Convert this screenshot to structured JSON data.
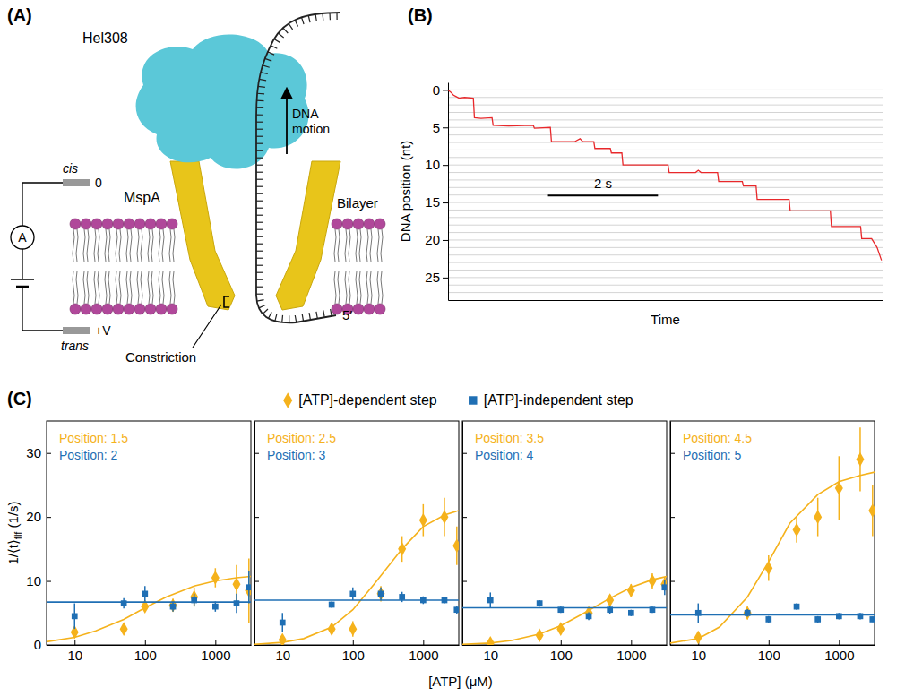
{
  "diagram": {
    "panel": "(A)",
    "labels": {
      "helicase": "Hel308",
      "motion": "DNA motion",
      "pore": "MspA",
      "membrane": "Bilayer",
      "cis": "cis",
      "trans": "trans",
      "cis_potential": "0",
      "trans_potential": "+V",
      "ammeter": "A",
      "constriction": "Constriction",
      "end": "5′"
    }
  },
  "chart_data": [
    {
      "type": "line",
      "panel": "(B)",
      "xlabel": "Time",
      "ylabel": "DNA position (nt)",
      "x": [
        0,
        0.05,
        0.1,
        0.15,
        0.2,
        0.3,
        0.46,
        0.48,
        0.6,
        0.8,
        0.82,
        1.1,
        1.55,
        1.57,
        1.86,
        1.88,
        2.3,
        2.4,
        2.45,
        2.65,
        2.67,
        2.95,
        2.97,
        3.16,
        3.18,
        3.6,
        4.0,
        4.02,
        4.5,
        4.55,
        4.6,
        4.9,
        4.92,
        5.35,
        5.37,
        5.6,
        5.62,
        6.2,
        6.22,
        6.95,
        6.97,
        7.5,
        7.52,
        7.7,
        7.8,
        7.88
      ],
      "series": [
        {
          "color": "#e8282b",
          "values": [
            0,
            0.3,
            0.7,
            0.9,
            1.1,
            1.0,
            1.1,
            3.7,
            3.8,
            3.7,
            4.7,
            4.8,
            4.7,
            5.1,
            5.0,
            6.9,
            6.9,
            6.5,
            6.9,
            6.9,
            7.8,
            7.8,
            8.4,
            8.4,
            10.0,
            10.0,
            10.0,
            11.0,
            11.0,
            10.7,
            11.0,
            11.0,
            12.2,
            12.2,
            12.8,
            12.8,
            14.6,
            14.6,
            16.1,
            16.1,
            18.2,
            18.2,
            19.8,
            19.8,
            21.0,
            22.7
          ]
        }
      ],
      "xlim": [
        0,
        7.9
      ],
      "ylim": [
        28,
        -1
      ],
      "yticks": [
        0,
        5,
        10,
        15,
        20,
        25
      ],
      "minor_yticks": [
        0,
        1,
        2,
        3,
        4,
        5,
        6,
        7,
        8,
        9,
        10,
        11,
        12,
        13,
        14,
        15,
        16,
        17,
        18,
        19,
        20,
        21,
        22,
        23,
        24,
        25,
        26,
        27
      ],
      "grid": true,
      "tick_labels": "y",
      "scale_bar": {
        "value": 2,
        "label": "2 s"
      }
    },
    {
      "type": "scatter",
      "panel": "(C)",
      "xlabel": "[ATP] (μM)",
      "ylabel": {
        "main": "1/⟨t⟩",
        "sub": "flf",
        "tail": " (1/s)"
      },
      "log": "x",
      "xlim": [
        4,
        3200
      ],
      "xticks": [
        10,
        100,
        1000
      ],
      "ylim": [
        0,
        35
      ],
      "yticks": [
        0,
        10,
        20,
        30
      ],
      "legend": "top",
      "series": [
        {
          "name": "[ATP]-dependent step",
          "color": "#f5b21c",
          "marker": "diamond"
        },
        {
          "name": "[ATP]-independent step",
          "color": "#1f6fb4",
          "marker": "square"
        }
      ],
      "panels": [
        {
          "annotations": [
            "Position: 1.5",
            "Position: 2"
          ],
          "x": [
            10,
            50,
            100,
            250,
            500,
            1000,
            2000,
            3000
          ],
          "series": [
            {
              "values": [
                2,
                2.5,
                6,
                6.2,
                7.5,
                10.5,
                9.5,
                8.5
              ],
              "errors": [
                0.6,
                0.8,
                0.8,
                1,
                1.5,
                1.5,
                3,
                5
              ],
              "fit_x": [
                4,
                10,
                20,
                50,
                100,
                200,
                500,
                1000,
                2000,
                3200
              ],
              "fit": [
                0.5,
                1.2,
                2.2,
                4,
                5.8,
                7.5,
                9.2,
                10,
                10.5,
                10.7
              ]
            },
            {
              "values": [
                4.5,
                6.5,
                8,
                6,
                7,
                6,
                6.5,
                9
              ],
              "errors": [
                2,
                0.8,
                1.2,
                0.8,
                1,
                0.8,
                1.5,
                2.5
              ],
              "fit_x": [
                4,
                3200
              ],
              "fit": [
                6.7,
                6.7
              ]
            }
          ]
        },
        {
          "annotations": [
            "Position: 2.5",
            "Position: 3"
          ],
          "x": [
            10,
            50,
            100,
            250,
            500,
            1000,
            2000,
            3000
          ],
          "tick_labels": "x",
          "series": [
            {
              "values": [
                0.8,
                2.5,
                2.5,
                8,
                15,
                19.5,
                20,
                15.5
              ],
              "errors": [
                0.8,
                0.8,
                1.2,
                1.2,
                2,
                2.5,
                3,
                3
              ],
              "fit_x": [
                4,
                10,
                20,
                50,
                100,
                200,
                500,
                1000,
                2000,
                3200
              ],
              "fit": [
                0.1,
                0.4,
                1,
                2.8,
                5.5,
                9.5,
                15,
                18.5,
                20.3,
                21
              ]
            },
            {
              "values": [
                3.5,
                6.3,
                8,
                8,
                7.5,
                7,
                7,
                5.5
              ],
              "errors": [
                1.5,
                0.5,
                1,
                1,
                0.8,
                0.6,
                0.5,
                0.6
              ],
              "fit_x": [
                4,
                3200
              ],
              "fit": [
                7.0,
                7.0
              ]
            }
          ]
        },
        {
          "annotations": [
            "Position: 3.5",
            "Position: 4"
          ],
          "x": [
            10,
            50,
            100,
            250,
            500,
            1000,
            2000,
            3000
          ],
          "tick_labels": "x",
          "series": [
            {
              "values": [
                0.3,
                1.5,
                2.5,
                5,
                7,
                8.5,
                10,
                9.5
              ],
              "errors": [
                0.3,
                0.4,
                0.5,
                0.6,
                0.8,
                1,
                1.2,
                1
              ],
              "fit_x": [
                4,
                10,
                20,
                50,
                100,
                200,
                500,
                1000,
                2000,
                3200
              ],
              "fit": [
                0.1,
                0.3,
                0.7,
                1.7,
                3,
                4.8,
                7.3,
                9,
                10.2,
                10.7
              ]
            },
            {
              "values": [
                7,
                6.5,
                5.5,
                4.5,
                5.5,
                5,
                5.5,
                9
              ],
              "errors": [
                1.2,
                0.5,
                0.5,
                0.6,
                0.6,
                0.5,
                0.5,
                1.2
              ],
              "fit_x": [
                4,
                3200
              ],
              "fit": [
                5.8,
                5.8
              ]
            }
          ]
        },
        {
          "annotations": [
            "Position: 4.5",
            "Position: 5"
          ],
          "x": [
            10,
            50,
            100,
            250,
            500,
            1000,
            2000,
            3000
          ],
          "tick_labels": "x",
          "series": [
            {
              "values": [
                1.2,
                5,
                12,
                18,
                20,
                24.5,
                29,
                21
              ],
              "errors": [
                0.8,
                1,
                2,
                2,
                3,
                5,
                5,
                4
              ],
              "fit_x": [
                4,
                10,
                20,
                50,
                100,
                200,
                500,
                1000,
                2000,
                3200
              ],
              "fit": [
                0.3,
                1,
                2.8,
                7.5,
                13,
                19,
                23.5,
                25.5,
                26.5,
                27
              ]
            },
            {
              "values": [
                5,
                5,
                4,
                6,
                4,
                4.5,
                4.5,
                4
              ],
              "errors": [
                1.5,
                0.6,
                0.5,
                0.5,
                0.5,
                0.5,
                0.5,
                0.4
              ],
              "fit_x": [
                4,
                3200
              ],
              "fit": [
                4.7,
                4.7
              ]
            }
          ]
        }
      ]
    }
  ]
}
